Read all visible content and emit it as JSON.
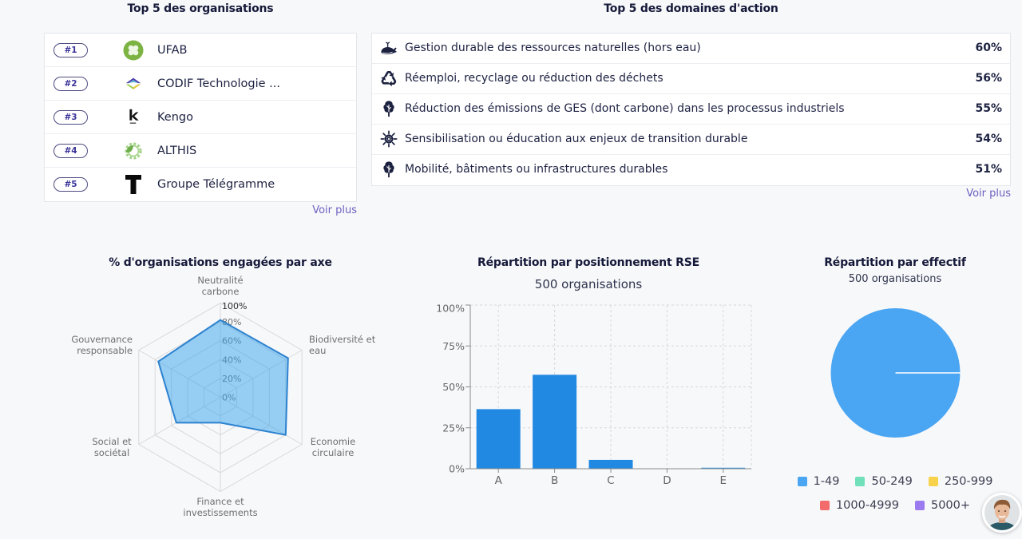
{
  "theme": {
    "bg": "#f7f8fa",
    "title": "#161a3a",
    "text": "#1d2242",
    "link": "#6b62c0",
    "badge-text": "#3a3399",
    "badge-border": "#4d4b80",
    "icon": "#1c2140"
  },
  "organisations": {
    "title": "Top 5 des organisations",
    "items": [
      {
        "rank": "#1",
        "name": "UFAB",
        "logo": "ufab-logo"
      },
      {
        "rank": "#2",
        "name": "CODIF Technologie ...",
        "logo": "codif-logo"
      },
      {
        "rank": "#3",
        "name": "Kengo",
        "logo": "kengo-logo"
      },
      {
        "rank": "#4",
        "name": "ALTHIS",
        "logo": "althis-logo"
      },
      {
        "rank": "#5",
        "name": "Groupe Télégramme",
        "logo": "telegramme-logo"
      }
    ],
    "more_label": "Voir plus"
  },
  "domains": {
    "title": "Top 5 des domaines d'action",
    "items": [
      {
        "icon": "whale-icon",
        "label": "Gestion durable des ressources naturelles (hors eau)",
        "value": "60%"
      },
      {
        "icon": "recycle-icon",
        "label": "Réemploi, recyclage ou réduction des déchets",
        "value": "56%"
      },
      {
        "icon": "tree-icon",
        "label": "Réduction des émissions de GES (dont carbone) dans les processus industriels",
        "value": "55%"
      },
      {
        "icon": "sun-icon",
        "label": "Sensibilisation ou éducation aux enjeux de transition durable",
        "value": "54%"
      },
      {
        "icon": "tree-icon",
        "label": "Mobilité, bâtiments ou infrastructures durables",
        "value": "51%"
      }
    ],
    "more_label": "Voir plus"
  },
  "user": {
    "avatar": "user-avatar"
  },
  "chart_data": [
    {
      "type": "radar",
      "title": "% d'organisations engagées par axe",
      "labels": [
        "Neutralité carbone",
        "Biodiversité et eau",
        "Economie circulaire",
        "Finance et investissements",
        "Social et sociétal",
        "Gouvernance responsable"
      ],
      "values": [
        82,
        83,
        80,
        27,
        54,
        76
      ],
      "ticks": [
        0,
        20,
        40,
        60,
        80,
        100
      ],
      "tick_suffix": "%",
      "range": [
        0,
        100
      ],
      "color": "#2c82cf",
      "fill_color": "#36a2eb",
      "grid_color": "#d9d9d9",
      "legend": "none"
    },
    {
      "type": "bar",
      "title": "Répartition par positionnement RSE",
      "subtitle": "500 organisations",
      "categories": [
        "A",
        "B",
        "C",
        "D",
        "E"
      ],
      "values": [
        36.4,
        57.4,
        5.4,
        0.2,
        0.6
      ],
      "yticks": [
        0,
        25,
        50,
        75,
        100
      ],
      "tick_suffix": "%",
      "ylim": [
        0,
        100
      ],
      "xlabel": "",
      "ylabel": "",
      "grid": true,
      "color": "#2289e3"
    },
    {
      "type": "pie",
      "title": "Répartition par effectif",
      "subtitle": "500 organisations",
      "categories": [
        "1-49",
        "50-249",
        "250-999",
        "1000-4999",
        "5000+"
      ],
      "values": [
        100,
        0,
        0,
        0,
        0
      ],
      "colors": [
        "#4aa5f2",
        "#6fe0b9",
        "#f8d24a",
        "#f36b6b",
        "#9b7bef"
      ],
      "legend_position": "bottom"
    }
  ]
}
